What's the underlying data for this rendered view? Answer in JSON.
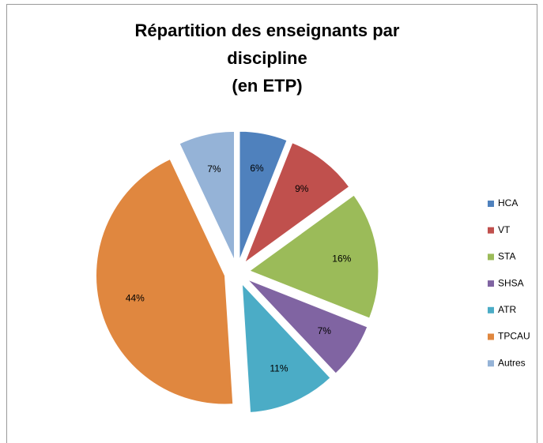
{
  "chart_data": {
    "type": "pie",
    "title": [
      "Répartition des enseignants par",
      "discipline",
      "(en ETP)"
    ],
    "categories": [
      "HCA",
      "VT",
      "STA",
      "SHSA",
      "ATR",
      "TPCAU",
      "Autres"
    ],
    "values": [
      6,
      9,
      16,
      7,
      11,
      44,
      7
    ],
    "value_labels": [
      "6%",
      "9%",
      "16%",
      "7%",
      "11%",
      "44%",
      "7%"
    ],
    "colors": [
      "#4f81bd",
      "#c0504d",
      "#9bbb59",
      "#8064a2",
      "#4bacc6",
      "#e0873f",
      "#95b3d7"
    ],
    "legend": "right"
  }
}
